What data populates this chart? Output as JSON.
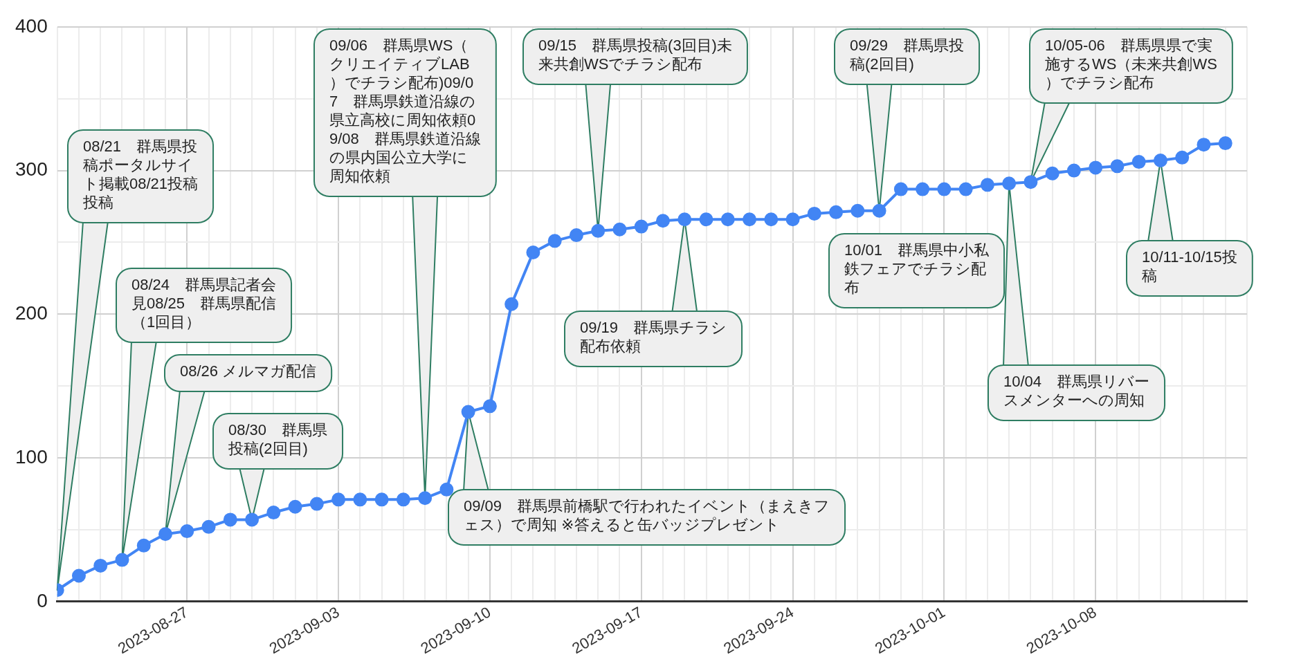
{
  "chart_data": {
    "type": "line",
    "x": [
      "2023-08-21",
      "2023-08-22",
      "2023-08-23",
      "2023-08-24",
      "2023-08-25",
      "2023-08-26",
      "2023-08-27",
      "2023-08-28",
      "2023-08-29",
      "2023-08-30",
      "2023-08-31",
      "2023-09-01",
      "2023-09-02",
      "2023-09-03",
      "2023-09-04",
      "2023-09-05",
      "2023-09-06",
      "2023-09-07",
      "2023-09-08",
      "2023-09-09",
      "2023-09-10",
      "2023-09-11",
      "2023-09-12",
      "2023-09-13",
      "2023-09-14",
      "2023-09-15",
      "2023-09-16",
      "2023-09-17",
      "2023-09-18",
      "2023-09-19",
      "2023-09-20",
      "2023-09-21",
      "2023-09-22",
      "2023-09-23",
      "2023-09-24",
      "2023-09-25",
      "2023-09-26",
      "2023-09-27",
      "2023-09-28",
      "2023-09-29",
      "2023-09-30",
      "2023-10-01",
      "2023-10-02",
      "2023-10-03",
      "2023-10-04",
      "2023-10-05",
      "2023-10-06",
      "2023-10-07",
      "2023-10-08",
      "2023-10-09",
      "2023-10-10",
      "2023-10-11",
      "2023-10-12",
      "2023-10-13",
      "2023-10-14"
    ],
    "series": [
      {
        "color": "#4285f4",
        "values": [
          8,
          18,
          25,
          29,
          39,
          47,
          49,
          52,
          57,
          57,
          62,
          66,
          68,
          71,
          71,
          71,
          71,
          72,
          78,
          132,
          136,
          207,
          243,
          251,
          255,
          258,
          259,
          261,
          265,
          266,
          266,
          266,
          266,
          266,
          266,
          270,
          271,
          272,
          272,
          287,
          287,
          287,
          287,
          290,
          291,
          292,
          298,
          300,
          302,
          303,
          306,
          307,
          309,
          318,
          319
        ]
      }
    ],
    "xlim": [
      "2023-08-21",
      "2023-10-15"
    ],
    "xticks": [
      {
        "value": "2023-08-21",
        "label": null
      },
      {
        "value": "2023-08-22",
        "label": null
      },
      {
        "value": "2023-08-23",
        "label": null
      },
      {
        "value": "2023-08-24",
        "label": null
      },
      {
        "value": "2023-08-25",
        "label": null
      },
      {
        "value": "2023-08-26",
        "label": null
      },
      {
        "value": "2023-08-27",
        "label": "2023-08-27"
      },
      {
        "value": "2023-08-28",
        "label": null
      },
      {
        "value": "2023-08-29",
        "label": null
      },
      {
        "value": "2023-08-30",
        "label": null
      },
      {
        "value": "2023-08-31",
        "label": null
      },
      {
        "value": "2023-09-01",
        "label": null
      },
      {
        "value": "2023-09-02",
        "label": null
      },
      {
        "value": "2023-09-03",
        "label": "2023-09-03"
      },
      {
        "value": "2023-09-04",
        "label": null
      },
      {
        "value": "2023-09-05",
        "label": null
      },
      {
        "value": "2023-09-06",
        "label": null
      },
      {
        "value": "2023-09-07",
        "label": null
      },
      {
        "value": "2023-09-08",
        "label": null
      },
      {
        "value": "2023-09-09",
        "label": null
      },
      {
        "value": "2023-09-10",
        "label": "2023-09-10"
      },
      {
        "value": "2023-09-11",
        "label": null
      },
      {
        "value": "2023-09-12",
        "label": null
      },
      {
        "value": "2023-09-13",
        "label": null
      },
      {
        "value": "2023-09-14",
        "label": null
      },
      {
        "value": "2023-09-15",
        "label": null
      },
      {
        "value": "2023-09-16",
        "label": null
      },
      {
        "value": "2023-09-17",
        "label": "2023-09-17"
      },
      {
        "value": "2023-09-18",
        "label": null
      },
      {
        "value": "2023-09-19",
        "label": null
      },
      {
        "value": "2023-09-20",
        "label": null
      },
      {
        "value": "2023-09-21",
        "label": null
      },
      {
        "value": "2023-09-22",
        "label": null
      },
      {
        "value": "2023-09-23",
        "label": null
      },
      {
        "value": "2023-09-24",
        "label": "2023-09-24"
      },
      {
        "value": "2023-09-25",
        "label": null
      },
      {
        "value": "2023-09-26",
        "label": null
      },
      {
        "value": "2023-09-27",
        "label": null
      },
      {
        "value": "2023-09-28",
        "label": null
      },
      {
        "value": "2023-09-29",
        "label": null
      },
      {
        "value": "2023-09-30",
        "label": null
      },
      {
        "value": "2023-10-01",
        "label": "2023-10-01"
      },
      {
        "value": "2023-10-02",
        "label": null
      },
      {
        "value": "2023-10-03",
        "label": null
      },
      {
        "value": "2023-10-04",
        "label": null
      },
      {
        "value": "2023-10-05",
        "label": null
      },
      {
        "value": "2023-10-06",
        "label": null
      },
      {
        "value": "2023-10-07",
        "label": null
      },
      {
        "value": "2023-10-08",
        "label": "2023-10-08"
      },
      {
        "value": "2023-10-09",
        "label": null
      },
      {
        "value": "2023-10-10",
        "label": null
      },
      {
        "value": "2023-10-11",
        "label": null
      },
      {
        "value": "2023-10-12",
        "label": null
      },
      {
        "value": "2023-10-13",
        "label": null
      },
      {
        "value": "2023-10-14",
        "label": null
      },
      {
        "value": "2023-10-15",
        "label": null
      }
    ],
    "ylim": [
      0,
      400
    ],
    "yticks": [
      0,
      {
        "value": 50,
        "label": null
      },
      100,
      {
        "value": 150,
        "label": null
      },
      200,
      {
        "value": 250,
        "label": null
      },
      300,
      {
        "value": 350,
        "label": null
      },
      400
    ],
    "grid": true,
    "marker": "circle",
    "line_style": "solid",
    "annotations": [
      {
        "text": "08/26 メルマガ配信",
        "x": "2023-08-26",
        "y": 47
      },
      {
        "text": "08/24　群馬県記者会見08/25　群馬県配信（1回目）",
        "x": "2023-08-24",
        "y": 29
      },
      {
        "text": "08/21　群馬県投稿ポータルサイト掲載08/21投稿投稿",
        "x": "2023-08-21",
        "y": 8
      },
      {
        "text": "08/30　群馬県投稿(2回目)",
        "x": "2023-08-30",
        "y": 57
      },
      {
        "text": "09/06　群馬県WS（クリエイティブLAB）でチラシ配布)09/07　群馬県鉄道沿線の県立高校に周知依頼09/08　群馬県鉄道沿線の県内国公立大学に周知依頼",
        "x": "2023-09-07",
        "y": 72
      },
      {
        "text": "09/15　群馬県投稿(3回目)未来共創WSでチラシ配布",
        "x": "2023-09-15",
        "y": 258
      },
      {
        "text": "09/09　群馬県前橋駅で行われたイベント（まえきフェス）で周知 ※答えると缶バッジプレゼント",
        "x": "2023-09-09",
        "y": 132
      },
      {
        "text": "09/19　群馬県チラシ配布依頼",
        "x": "2023-09-19",
        "y": 266
      },
      {
        "text": "09/29　群馬県投稿(2回目)",
        "x": "2023-09-28",
        "y": 272
      },
      "10/01　群馬県中小私鉄フェアでチラシ配布",
      {
        "text": "10/04　群馬県リバースメンターへの周知",
        "x": "2023-10-04",
        "y": 291
      },
      {
        "text": "10/05-06　群馬県県で実施するWS（未来共創WS）でチラシ配布",
        "x": "2023-10-05",
        "y": 292
      },
      {
        "text": "10/11-10/15投稿",
        "x": "2023-10-11",
        "y": 307
      }
    ]
  }
}
